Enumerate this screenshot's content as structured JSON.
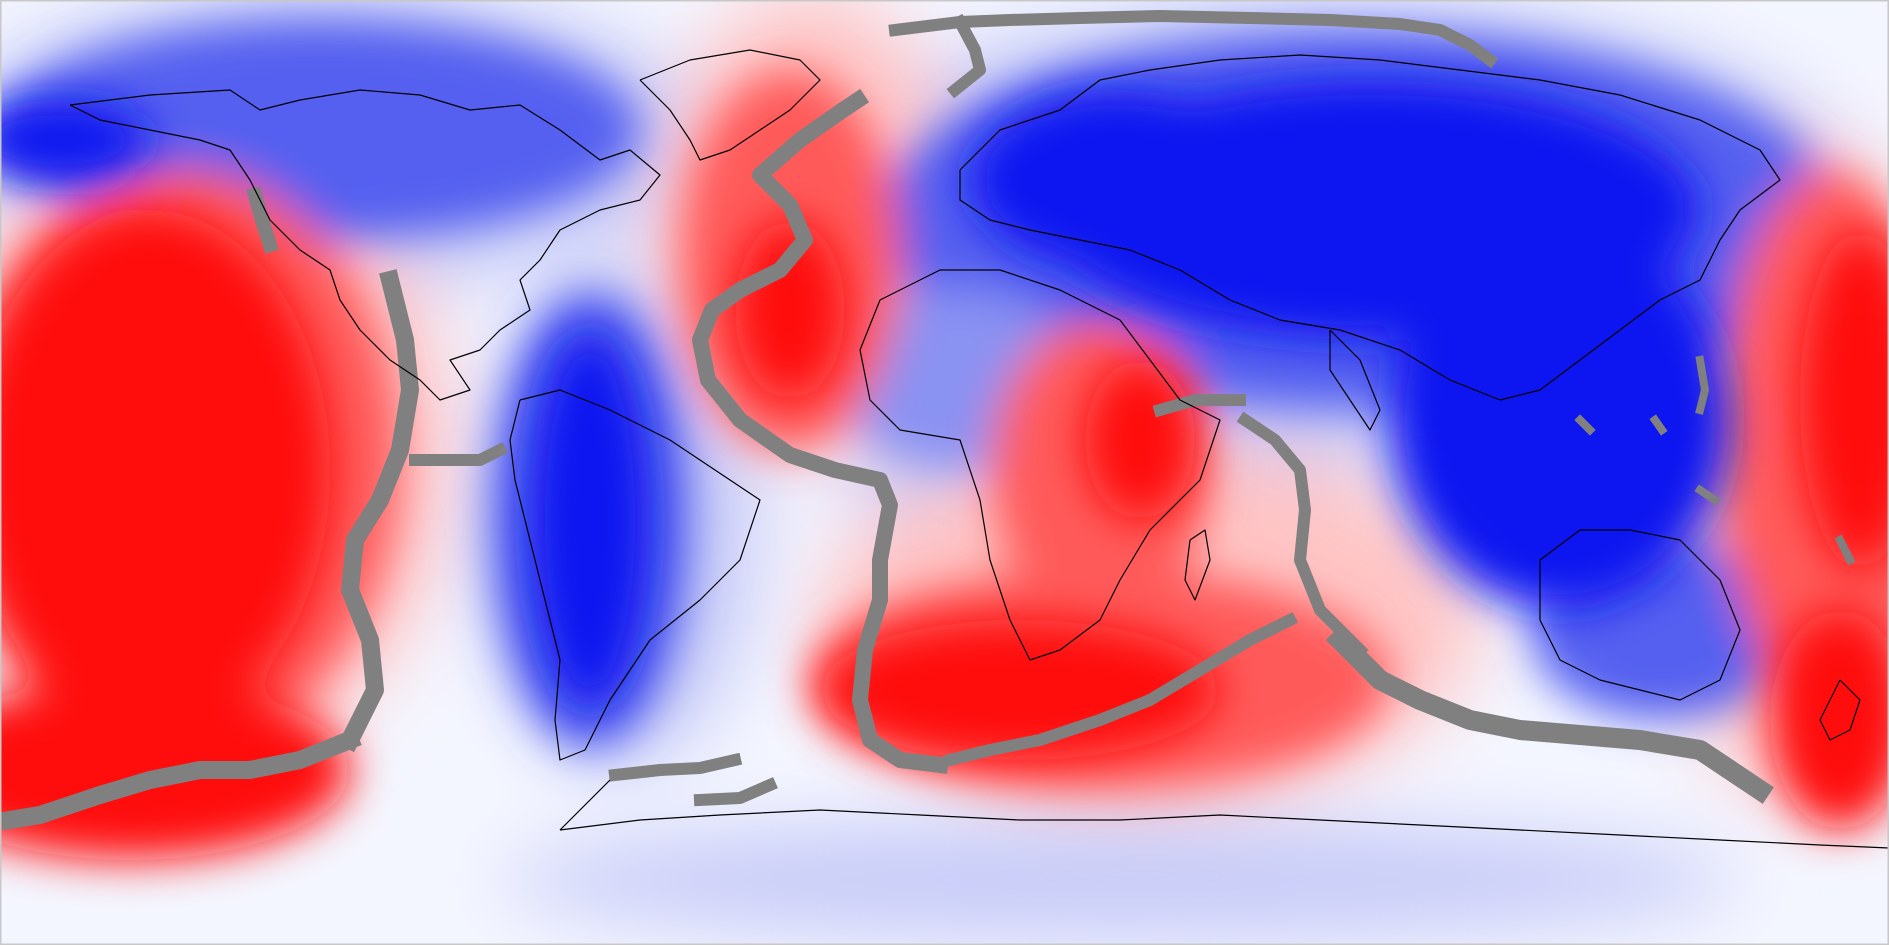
{
  "map": {
    "projection": "equirectangular",
    "colors": {
      "background": "#f4f6ff",
      "strong_blue": "#0a14f0",
      "mid_blue": "#5560f0",
      "light_blue": "#c7cbf7",
      "strong_red": "#ff0c0c",
      "mid_red": "#ff5a5a",
      "light_red": "#ffc4c4",
      "ridge_gray": "#808080",
      "coastline": "#000000",
      "border": "#c8c8c8"
    },
    "layers": [
      "velocity-anomaly-field",
      "ridge-mask",
      "coastlines"
    ]
  }
}
